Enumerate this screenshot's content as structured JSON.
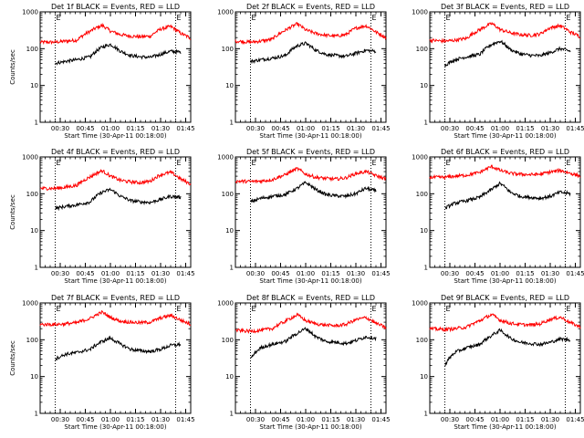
{
  "chart_data": [
    {
      "type": "line",
      "title": "Det 1f BLACK = Events, RED = LLD",
      "xlabel": "Start Time (30-Apr-11 00:18:00)",
      "ylabel": "Counts/sec",
      "yscale": "log",
      "ylim": [
        1,
        1000
      ],
      "xlim": [
        18,
        108
      ],
      "xticks": [
        "00:30",
        "00:45",
        "01:00",
        "01:15",
        "01:30",
        "01:45"
      ],
      "yticks": [
        "1",
        "10",
        "100",
        "1000"
      ],
      "markers": [
        {
          "label": "E",
          "x": 27
        },
        {
          "label": "E",
          "x": 99
        }
      ],
      "series": [
        {
          "name": "LLD",
          "color": "#ff0000",
          "x": [
            18,
            27,
            33,
            40,
            48,
            55,
            60,
            66,
            72,
            78,
            84,
            90,
            96,
            102,
            108
          ],
          "y": [
            150,
            150,
            160,
            170,
            300,
            430,
            300,
            240,
            220,
            210,
            220,
            340,
            400,
            260,
            190
          ]
        },
        {
          "name": "Events",
          "color": "#000000",
          "x": [
            27,
            33,
            40,
            48,
            55,
            60,
            66,
            72,
            78,
            84,
            90,
            96,
            102
          ],
          "y": [
            40,
            45,
            50,
            60,
            110,
            130,
            85,
            65,
            60,
            58,
            70,
            85,
            80
          ]
        }
      ]
    },
    {
      "type": "line",
      "title": "Det 2f BLACK = Events, RED = LLD",
      "xlabel": "Start Time (30-Apr-11 00:18:00)",
      "ylabel": "",
      "yscale": "log",
      "ylim": [
        1,
        1000
      ],
      "xlim": [
        18,
        108
      ],
      "xticks": [
        "00:30",
        "00:45",
        "01:00",
        "01:15",
        "01:30",
        "01:45"
      ],
      "yticks": [
        "1",
        "10",
        "100",
        "1000"
      ],
      "markers": [
        {
          "label": "E",
          "x": 27
        },
        {
          "label": "E",
          "x": 99
        }
      ],
      "series": [
        {
          "name": "LLD",
          "color": "#ff0000",
          "x": [
            18,
            27,
            33,
            40,
            48,
            55,
            60,
            66,
            72,
            78,
            84,
            90,
            96,
            102,
            108
          ],
          "y": [
            160,
            150,
            160,
            180,
            320,
            470,
            320,
            260,
            230,
            220,
            240,
            360,
            420,
            280,
            200
          ]
        },
        {
          "name": "Events",
          "color": "#000000",
          "x": [
            27,
            33,
            40,
            48,
            55,
            60,
            66,
            72,
            78,
            84,
            90,
            96,
            102
          ],
          "y": [
            45,
            50,
            55,
            65,
            120,
            140,
            90,
            70,
            65,
            62,
            75,
            90,
            85
          ]
        }
      ]
    },
    {
      "type": "line",
      "title": "Det 3f BLACK = Events, RED = LLD",
      "xlabel": "Start Time (30-Apr-11 00:18:00)",
      "ylabel": "",
      "yscale": "log",
      "ylim": [
        1,
        1000
      ],
      "xlim": [
        18,
        108
      ],
      "xticks": [
        "00:30",
        "00:45",
        "01:00",
        "01:15",
        "01:30",
        "01:45"
      ],
      "yticks": [
        "1",
        "10",
        "100",
        "1000"
      ],
      "markers": [
        {
          "label": "E",
          "x": 27
        },
        {
          "label": "E",
          "x": 99
        }
      ],
      "series": [
        {
          "name": "LLD",
          "color": "#ff0000",
          "x": [
            18,
            27,
            33,
            40,
            48,
            55,
            60,
            66,
            72,
            78,
            84,
            90,
            96,
            102,
            108
          ],
          "y": [
            170,
            160,
            170,
            190,
            330,
            480,
            330,
            270,
            240,
            230,
            250,
            370,
            420,
            280,
            210
          ]
        },
        {
          "name": "Events",
          "color": "#000000",
          "x": [
            27,
            33,
            40,
            48,
            55,
            60,
            66,
            72,
            78,
            84,
            90,
            96,
            102
          ],
          "y": [
            35,
            50,
            60,
            70,
            130,
            160,
            95,
            72,
            66,
            64,
            78,
            100,
            85
          ]
        }
      ]
    },
    {
      "type": "line",
      "title": "Det 4f BLACK = Events, RED = LLD",
      "xlabel": "Start Time (30-Apr-11 00:18:00)",
      "ylabel": "Counts/sec",
      "yscale": "log",
      "ylim": [
        1,
        1000
      ],
      "xlim": [
        18,
        108
      ],
      "xticks": [
        "00:30",
        "00:45",
        "01:00",
        "01:15",
        "01:30",
        "01:45"
      ],
      "yticks": [
        "1",
        "10",
        "100",
        "1000"
      ],
      "markers": [
        {
          "label": "E",
          "x": 27
        },
        {
          "label": "E",
          "x": 99
        }
      ],
      "series": [
        {
          "name": "LLD",
          "color": "#ff0000",
          "x": [
            18,
            27,
            33,
            40,
            48,
            55,
            60,
            66,
            72,
            78,
            84,
            90,
            96,
            102,
            108
          ],
          "y": [
            140,
            140,
            150,
            170,
            290,
            420,
            300,
            230,
            210,
            200,
            220,
            330,
            380,
            250,
            180
          ]
        },
        {
          "name": "Events",
          "color": "#000000",
          "x": [
            27,
            33,
            40,
            48,
            55,
            60,
            66,
            72,
            78,
            84,
            90,
            96,
            102
          ],
          "y": [
            40,
            45,
            50,
            60,
            110,
            130,
            85,
            65,
            60,
            58,
            70,
            85,
            80
          ]
        }
      ]
    },
    {
      "type": "line",
      "title": "Det 5f BLACK = Events, RED = LLD",
      "xlabel": "Start Time (30-Apr-11 00:18:00)",
      "ylabel": "",
      "yscale": "log",
      "ylim": [
        1,
        1000
      ],
      "xlim": [
        18,
        108
      ],
      "xticks": [
        "00:30",
        "00:45",
        "01:00",
        "01:15",
        "01:30",
        "01:45"
      ],
      "yticks": [
        "1",
        "10",
        "100",
        "1000"
      ],
      "markers": [
        {
          "label": "E",
          "x": 27
        },
        {
          "label": "E",
          "x": 99
        }
      ],
      "series": [
        {
          "name": "LLD",
          "color": "#ff0000",
          "x": [
            18,
            27,
            33,
            40,
            48,
            55,
            60,
            66,
            72,
            78,
            84,
            90,
            96,
            102,
            108
          ],
          "y": [
            220,
            215,
            220,
            240,
            330,
            480,
            340,
            280,
            260,
            250,
            270,
            350,
            400,
            310,
            250
          ]
        },
        {
          "name": "Events",
          "color": "#000000",
          "x": [
            27,
            33,
            40,
            48,
            55,
            60,
            66,
            72,
            78,
            84,
            90,
            96,
            102
          ],
          "y": [
            60,
            75,
            85,
            95,
            140,
            200,
            130,
            95,
            88,
            85,
            100,
            140,
            120
          ]
        }
      ]
    },
    {
      "type": "line",
      "title": "Det 6f BLACK = Events, RED = LLD",
      "xlabel": "Start Time (30-Apr-11 00:18:00)",
      "ylabel": "",
      "yscale": "log",
      "ylim": [
        1,
        1000
      ],
      "xlim": [
        18,
        108
      ],
      "xticks": [
        "00:30",
        "00:45",
        "01:00",
        "01:15",
        "01:30",
        "01:45"
      ],
      "yticks": [
        "1",
        "10",
        "100",
        "1000"
      ],
      "markers": [
        {
          "label": "E",
          "x": 27
        },
        {
          "label": "E",
          "x": 99
        }
      ],
      "series": [
        {
          "name": "LLD",
          "color": "#ff0000",
          "x": [
            18,
            27,
            33,
            40,
            48,
            55,
            60,
            66,
            72,
            78,
            84,
            90,
            96,
            102,
            108
          ],
          "y": [
            280,
            280,
            300,
            320,
            380,
            550,
            430,
            360,
            340,
            330,
            340,
            390,
            430,
            360,
            300
          ]
        },
        {
          "name": "Events",
          "color": "#000000",
          "x": [
            27,
            33,
            40,
            48,
            55,
            60,
            66,
            72,
            78,
            84,
            90,
            96,
            102
          ],
          "y": [
            40,
            55,
            65,
            80,
            130,
            190,
            110,
            85,
            80,
            75,
            85,
            110,
            100
          ]
        }
      ]
    },
    {
      "type": "line",
      "title": "Det 7f BLACK = Events, RED = LLD",
      "xlabel": "Start Time (30-Apr-11 00:18:00)",
      "ylabel": "Counts/sec",
      "yscale": "log",
      "ylim": [
        1,
        1000
      ],
      "xlim": [
        18,
        108
      ],
      "xticks": [
        "00:30",
        "00:45",
        "01:00",
        "01:15",
        "01:30",
        "01:45"
      ],
      "yticks": [
        "1",
        "10",
        "100",
        "1000"
      ],
      "markers": [
        {
          "label": "E",
          "x": 27
        },
        {
          "label": "E",
          "x": 99
        }
      ],
      "series": [
        {
          "name": "LLD",
          "color": "#ff0000",
          "x": [
            18,
            27,
            33,
            40,
            48,
            55,
            60,
            66,
            72,
            78,
            84,
            90,
            96,
            102,
            108
          ],
          "y": [
            260,
            260,
            270,
            290,
            380,
            560,
            400,
            320,
            300,
            290,
            300,
            390,
            460,
            340,
            260
          ]
        },
        {
          "name": "Events",
          "color": "#000000",
          "x": [
            27,
            33,
            40,
            48,
            55,
            60,
            66,
            72,
            78,
            84,
            90,
            96,
            102
          ],
          "y": [
            30,
            40,
            45,
            55,
            90,
            110,
            75,
            55,
            50,
            48,
            55,
            70,
            75
          ]
        }
      ]
    },
    {
      "type": "line",
      "title": "Det 8f BLACK = Events, RED = LLD",
      "xlabel": "Start Time (30-Apr-11 00:18:00)",
      "ylabel": "",
      "yscale": "log",
      "ylim": [
        1,
        1000
      ],
      "xlim": [
        18,
        108
      ],
      "xticks": [
        "00:30",
        "00:45",
        "01:00",
        "01:15",
        "01:30",
        "01:45"
      ],
      "yticks": [
        "1",
        "10",
        "100",
        "1000"
      ],
      "markers": [
        {
          "label": "E",
          "x": 27
        },
        {
          "label": "E",
          "x": 99
        }
      ],
      "series": [
        {
          "name": "LLD",
          "color": "#ff0000",
          "x": [
            18,
            27,
            33,
            40,
            48,
            55,
            60,
            66,
            72,
            78,
            84,
            90,
            96,
            102,
            108
          ],
          "y": [
            180,
            170,
            180,
            200,
            320,
            470,
            330,
            270,
            250,
            240,
            260,
            350,
            400,
            280,
            210
          ]
        },
        {
          "name": "Events",
          "color": "#000000",
          "x": [
            27,
            33,
            40,
            48,
            55,
            60,
            66,
            72,
            78,
            84,
            90,
            96,
            102
          ],
          "y": [
            30,
            60,
            75,
            90,
            150,
            200,
            120,
            90,
            85,
            80,
            95,
            120,
            110
          ]
        }
      ]
    },
    {
      "type": "line",
      "title": "Det 9f BLACK = Events, RED = LLD",
      "xlabel": "Start Time (30-Apr-11 00:18:00)",
      "ylabel": "",
      "yscale": "log",
      "ylim": [
        1,
        1000
      ],
      "xlim": [
        18,
        108
      ],
      "xticks": [
        "00:30",
        "00:45",
        "01:00",
        "01:15",
        "01:30",
        "01:45"
      ],
      "yticks": [
        "1",
        "10",
        "100",
        "1000"
      ],
      "markers": [
        {
          "label": "E",
          "x": 27
        },
        {
          "label": "E",
          "x": 99
        }
      ],
      "series": [
        {
          "name": "LLD",
          "color": "#ff0000",
          "x": [
            18,
            27,
            33,
            40,
            48,
            55,
            60,
            66,
            72,
            78,
            84,
            90,
            96,
            102,
            108
          ],
          "y": [
            200,
            190,
            200,
            220,
            330,
            480,
            340,
            280,
            260,
            250,
            270,
            360,
            410,
            290,
            220
          ]
        },
        {
          "name": "Events",
          "color": "#000000",
          "x": [
            27,
            33,
            40,
            48,
            55,
            60,
            66,
            72,
            78,
            84,
            90,
            96,
            102
          ],
          "y": [
            20,
            45,
            60,
            75,
            130,
            180,
            110,
            85,
            80,
            75,
            85,
            105,
            100
          ]
        }
      ]
    }
  ]
}
